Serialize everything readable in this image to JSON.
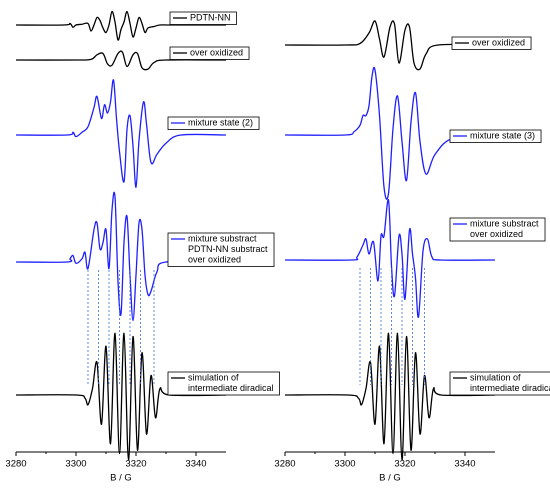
{
  "chart_data": [
    {
      "type": "line",
      "xlim": [
        3280,
        3350
      ],
      "ylim": [
        -1,
        1
      ],
      "x": [
        3280,
        3296,
        3298,
        3299,
        3300,
        3302,
        3304,
        3305,
        3306,
        3307,
        3308,
        3309,
        3310,
        3311,
        3312,
        3313,
        3314,
        3315,
        3316,
        3317,
        3318,
        3319,
        3320,
        3321,
        3322,
        3323,
        3324,
        3326,
        3328,
        3332,
        3350
      ],
      "series": [
        {
          "name": [
            "PDTN-NN"
          ],
          "color": "#000000",
          "values": [
            0,
            0,
            0.1,
            -0.15,
            0,
            0.05,
            0.1,
            -0.4,
            0,
            0.5,
            0.3,
            -0.2,
            -0.5,
            0,
            0.9,
            0.2,
            -1,
            -0.3,
            0.2,
            0.9,
            0.1,
            -0.8,
            -0.2,
            0.5,
            0.1,
            -0.5,
            -0.2,
            -0.1,
            0,
            0,
            0
          ]
        }
      ]
    },
    {
      "type": "line",
      "xlim": [
        3280,
        3350
      ],
      "ylim": [
        -1,
        1
      ],
      "x": [
        3280,
        3300,
        3305,
        3307,
        3309,
        3310.5,
        3312,
        3314,
        3315.5,
        3317,
        3319,
        3320.5,
        3322,
        3324,
        3326,
        3330,
        3350
      ],
      "series": [
        {
          "name": [
            "over oxidized"
          ],
          "color": "#000000",
          "values": [
            0,
            0,
            0.05,
            0.4,
            0.5,
            -0.3,
            -0.4,
            0.5,
            0.6,
            -0.5,
            0.4,
            0.5,
            -0.6,
            -0.7,
            -0.2,
            0,
            0
          ]
        }
      ]
    },
    {
      "type": "line",
      "xlim": [
        3280,
        3350
      ],
      "ylim": [
        -1,
        1
      ],
      "x": [
        3280,
        3297,
        3299,
        3300,
        3302,
        3304,
        3306,
        3307,
        3308.5,
        3309.5,
        3310.5,
        3311.5,
        3312.5,
        3313.5,
        3314.5,
        3316,
        3317,
        3318,
        3319,
        3320,
        3321,
        3322.5,
        3323.5,
        3325,
        3327,
        3330,
        3335,
        3350
      ],
      "series": [
        {
          "name": [
            "mixture state (2)"
          ],
          "color": "#1f1fff",
          "values": [
            0,
            0,
            0.05,
            -0.03,
            0.05,
            0.15,
            0.5,
            0.7,
            0.3,
            0.55,
            0.4,
            0.6,
            1.0,
            0.3,
            -0.3,
            -0.85,
            0.1,
            0.35,
            -0.2,
            -0.95,
            -0.1,
            0.6,
            0.2,
            -0.5,
            -0.35,
            -0.15,
            0,
            0
          ]
        }
      ]
    },
    {
      "type": "line",
      "xlim": [
        3280,
        3350
      ],
      "ylim": [
        -1,
        1
      ],
      "x": [
        3280,
        3297,
        3298,
        3299,
        3300,
        3302,
        3303,
        3304,
        3306,
        3307,
        3308,
        3309,
        3310,
        3311,
        3312,
        3313,
        3314,
        3315,
        3316,
        3317,
        3318,
        3319,
        3320,
        3321,
        3322,
        3323,
        3324,
        3325,
        3327,
        3330,
        3350
      ],
      "series": [
        {
          "name": [
            "mixture substract",
            "PDTN-NN substract",
            "over oxidized"
          ],
          "color": "#1f1fff",
          "values": [
            0,
            0,
            0.05,
            0.1,
            -0.02,
            0.05,
            0.15,
            -0.1,
            0.5,
            0.6,
            0.2,
            0.3,
            0.5,
            -0.1,
            0.8,
            1.0,
            -0.3,
            -0.8,
            0.3,
            0.7,
            -0.2,
            -0.9,
            -0.2,
            0.6,
            0.5,
            -0.2,
            -0.5,
            -0.45,
            -0.15,
            0,
            0
          ]
        }
      ]
    },
    {
      "type": "line",
      "xlim": [
        3280,
        3350
      ],
      "ylim": [
        -1,
        1
      ],
      "xticks": [
        3280,
        3300,
        3320,
        3340
      ],
      "xlabel": "B / G",
      "guide_lines_x": [
        3304,
        3307.5,
        3311,
        3314.5,
        3318,
        3321.5,
        3326
      ],
      "x": [
        3280,
        3300,
        3303,
        3304,
        3305.5,
        3307,
        3308.5,
        3310,
        3311.5,
        3313,
        3314.5,
        3316,
        3317.5,
        3319,
        3320.5,
        3322,
        3323.5,
        3325,
        3326.5,
        3328,
        3331,
        3350
      ],
      "series": [
        {
          "name": [
            "simulation of",
            "intermediate diradical"
          ],
          "color": "#000000",
          "values": [
            0,
            0,
            -0.05,
            -0.15,
            0.1,
            0.5,
            -0.45,
            0.75,
            -0.75,
            0.95,
            -0.9,
            0.95,
            -1.0,
            0.9,
            -0.85,
            0.65,
            -0.6,
            0.3,
            -0.35,
            0.1,
            0,
            0
          ]
        }
      ]
    },
    {
      "type": "line",
      "xlim": [
        3280,
        3350
      ],
      "ylim": [
        -1,
        1
      ],
      "x": [
        3280,
        3300,
        3305,
        3308,
        3310,
        3311.5,
        3313,
        3315,
        3316.5,
        3318,
        3320,
        3321.5,
        3323,
        3325,
        3327,
        3331,
        3350
      ],
      "series": [
        {
          "name": [
            "over oxidized"
          ],
          "color": "#000000",
          "values": [
            0,
            0,
            0.05,
            0.4,
            0.8,
            0.2,
            -0.4,
            0.6,
            0.7,
            -0.6,
            0.5,
            0.6,
            -0.6,
            -0.8,
            -0.3,
            0,
            0
          ]
        }
      ]
    },
    {
      "type": "line",
      "xlim": [
        3280,
        3350
      ],
      "ylim": [
        -1,
        1
      ],
      "x": [
        3280,
        3300,
        3303,
        3305,
        3306,
        3307,
        3308,
        3309,
        3310,
        3311.5,
        3313,
        3314.5,
        3316,
        3317.5,
        3319,
        3320.5,
        3322,
        3323.5,
        3325,
        3327,
        3330,
        3336,
        3350
      ],
      "series": [
        {
          "name": [
            "mixture state (3)"
          ],
          "color": "#1f1fff",
          "values": [
            0,
            0,
            0.05,
            0.15,
            0.3,
            0.3,
            0.45,
            0.9,
            1.0,
            0.3,
            -0.8,
            -0.9,
            0.1,
            0.6,
            -0.1,
            -0.7,
            0.2,
            0.65,
            -0.1,
            -0.6,
            -0.3,
            -0.05,
            0
          ]
        }
      ]
    },
    {
      "type": "line",
      "xlim": [
        3280,
        3350
      ],
      "ylim": [
        -1,
        1
      ],
      "x": [
        3280,
        3302,
        3304,
        3306,
        3307,
        3308,
        3309.5,
        3311,
        3312,
        3313,
        3314.5,
        3315.5,
        3316.5,
        3318,
        3319,
        3320,
        3321.5,
        3322.5,
        3323.5,
        3324.5,
        3326,
        3327.5,
        3329,
        3332,
        3350
      ],
      "series": [
        {
          "name": [
            "mixture substract",
            "over oxidized"
          ],
          "color": "#1f1fff",
          "values": [
            0,
            0,
            0.05,
            0.25,
            0.35,
            0.1,
            0.3,
            -0.35,
            0.4,
            0.4,
            1.0,
            -0.1,
            -0.6,
            0.4,
            0.1,
            -0.65,
            0.5,
            0.1,
            -0.3,
            -0.95,
            0.15,
            0.35,
            0.05,
            0,
            0
          ]
        }
      ]
    },
    {
      "type": "line",
      "xlim": [
        3280,
        3350
      ],
      "ylim": [
        -1,
        1
      ],
      "xticks": [
        3280,
        3300,
        3320,
        3340
      ],
      "xlabel": "B / G",
      "guide_lines_x": [
        3305,
        3308.5,
        3312,
        3315.5,
        3319,
        3322.5,
        3326.5
      ],
      "x": [
        3280,
        3301,
        3304.5,
        3305.5,
        3307,
        3308.5,
        3310,
        3311.5,
        3313,
        3314.5,
        3316,
        3317.5,
        3319,
        3320.5,
        3322,
        3323.5,
        3325,
        3326.5,
        3328,
        3329.5,
        3332,
        3350
      ],
      "series": [
        {
          "name": [
            "simulation of",
            "intermediate diradical"
          ],
          "color": "#000000",
          "values": [
            0,
            0,
            -0.05,
            -0.15,
            0.1,
            0.5,
            -0.45,
            0.75,
            -0.75,
            0.95,
            -0.9,
            0.95,
            -1.0,
            0.9,
            -0.85,
            0.65,
            -0.6,
            0.3,
            -0.35,
            0.1,
            0,
            0
          ]
        }
      ]
    }
  ]
}
